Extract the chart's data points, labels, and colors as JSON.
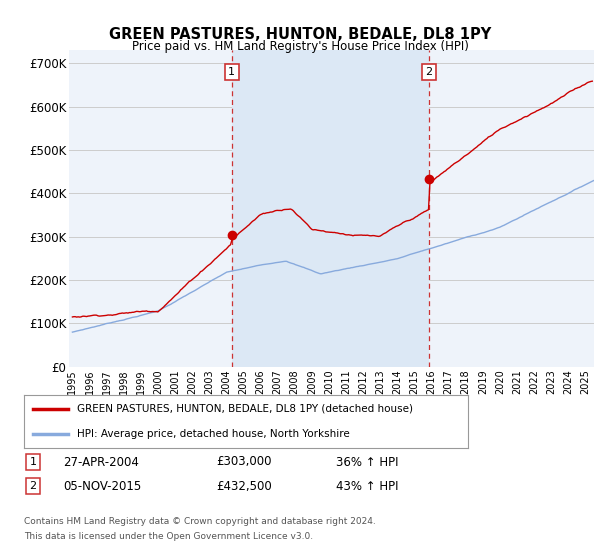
{
  "title": "GREEN PASTURES, HUNTON, BEDALE, DL8 1PY",
  "subtitle": "Price paid vs. HM Land Registry's House Price Index (HPI)",
  "ylabel_ticks": [
    "£0",
    "£100K",
    "£200K",
    "£300K",
    "£400K",
    "£500K",
    "£600K",
    "£700K"
  ],
  "ytick_values": [
    0,
    100000,
    200000,
    300000,
    400000,
    500000,
    600000,
    700000
  ],
  "ylim": [
    0,
    730000
  ],
  "xlim_start": 1994.8,
  "xlim_end": 2025.5,
  "transaction1": {
    "date_num": 2004.32,
    "price": 303000,
    "label": "1",
    "date_str": "27-APR-2004",
    "pct": "36% ↑ HPI"
  },
  "transaction2": {
    "date_num": 2015.84,
    "price": 432500,
    "label": "2",
    "date_str": "05-NOV-2015",
    "pct": "43% ↑ HPI"
  },
  "legend_line1": "GREEN PASTURES, HUNTON, BEDALE, DL8 1PY (detached house)",
  "legend_line2": "HPI: Average price, detached house, North Yorkshire",
  "footer1": "Contains HM Land Registry data © Crown copyright and database right 2024.",
  "footer2": "This data is licensed under the Open Government Licence v3.0.",
  "property_color": "#cc0000",
  "hpi_color": "#88aadd",
  "shade_color": "#dce8f5",
  "dashed_line_color": "#cc3333",
  "background_color": "#eef3fa",
  "grid_color": "#cccccc",
  "table_row1": [
    "1",
    "27-APR-2004",
    "£303,000",
    "36% ↑ HPI"
  ],
  "table_row2": [
    "2",
    "05-NOV-2015",
    "£432,500",
    "43% ↑ HPI"
  ]
}
